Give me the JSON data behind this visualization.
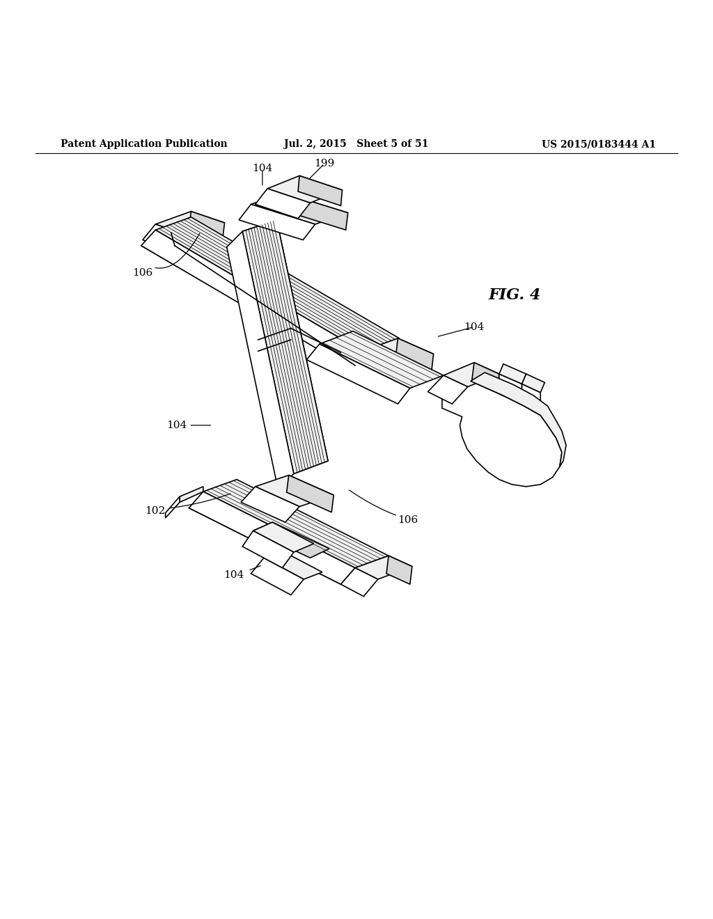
{
  "background_color": "#ffffff",
  "header_left": "Patent Application Publication",
  "header_center": "Jul. 2, 2015   Sheet 5 of 51",
  "header_right": "US 2015/0183444 A1",
  "fig_label": "FIG. 4",
  "line_color": "#000000",
  "text_color": "#000000",
  "header_fontsize": 10,
  "label_fontsize": 11,
  "fig_label_fontsize": 16,
  "fc_top": "#f0f0f0",
  "fc_front": "#ffffff",
  "fc_side": "#d8d8d8",
  "lw_main": 1.2
}
